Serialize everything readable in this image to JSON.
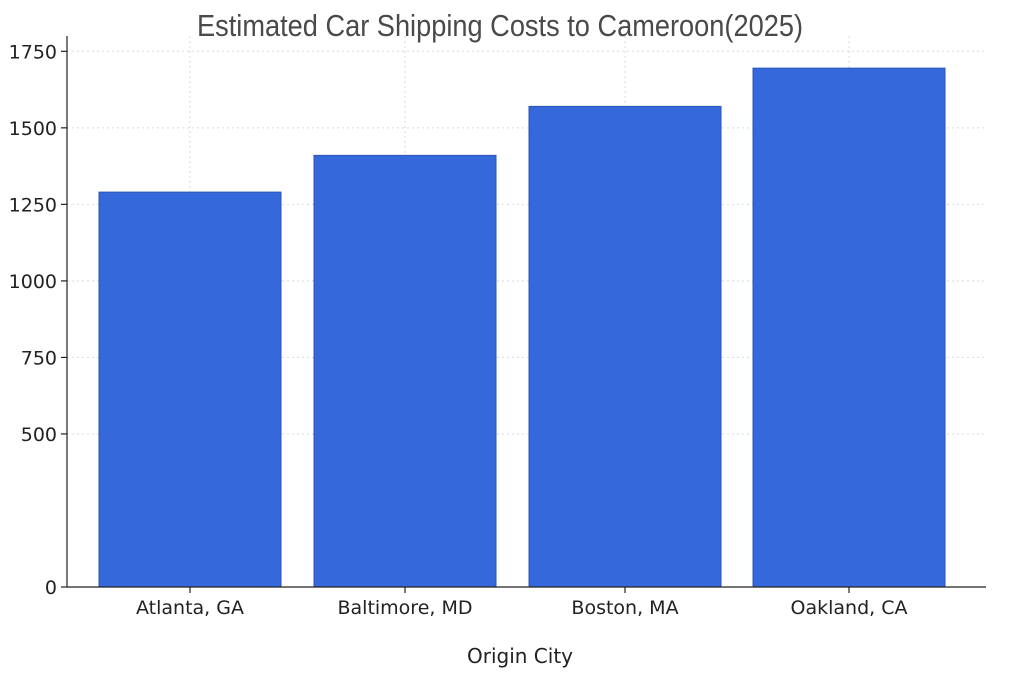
{
  "chart_data": {
    "type": "bar",
    "title": "Estimated Car Shipping Costs to Cameroon(2025)",
    "xlabel": "Origin City",
    "ylabel": "",
    "categories": [
      "Atlanta, GA",
      "Baltimore, MD",
      "Boston, MA",
      "Oakland, CA"
    ],
    "values": [
      1290,
      1410,
      1570,
      1695
    ],
    "ylim": [
      0,
      1800
    ],
    "yticks": [
      0,
      500,
      750,
      1000,
      1250,
      1500,
      1750
    ],
    "bar_color": "#3468db",
    "bar_edge_color": "#2a55b5",
    "grid": true,
    "legend": "none"
  }
}
